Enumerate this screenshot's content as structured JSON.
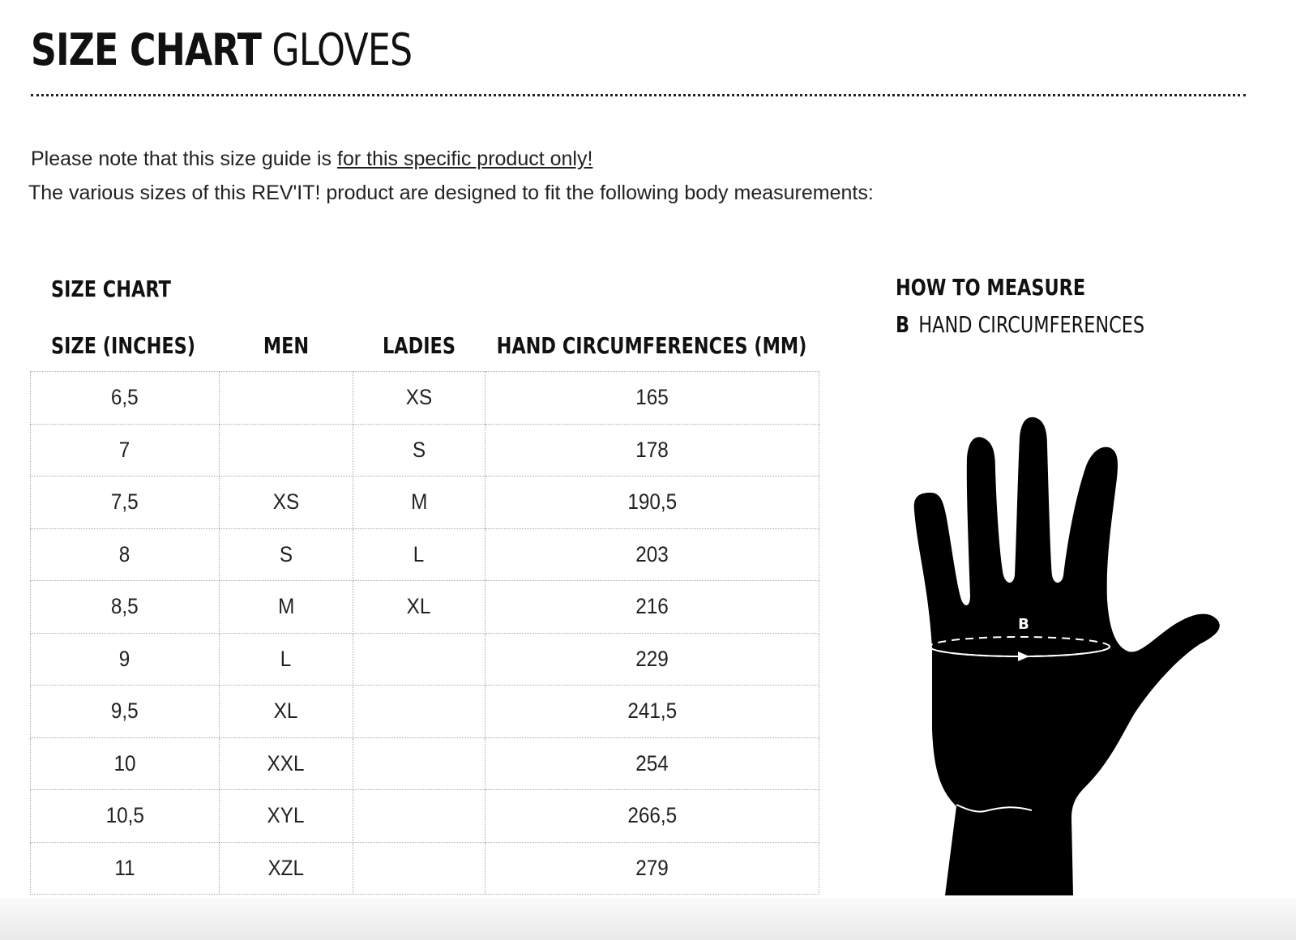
{
  "header": {
    "title_bold": "SIZE CHART",
    "title_light": "GLOVES"
  },
  "note": {
    "line1_prefix": "Please note that this size guide is ",
    "line1_link": "for this specific product only!",
    "line2": "The various sizes of this REV'IT! product are designed to fit the following body measurements:"
  },
  "size_chart": {
    "heading": "SIZE CHART",
    "columns": [
      "SIZE (INCHES)",
      "MEN",
      "LADIES",
      "HAND CIRCUMFERENCES (MM)"
    ],
    "rows": [
      [
        "6,5",
        "",
        "XS",
        "165"
      ],
      [
        "7",
        "",
        "S",
        "178"
      ],
      [
        "7,5",
        "XS",
        "M",
        "190,5"
      ],
      [
        "8",
        "S",
        "L",
        "203"
      ],
      [
        "8,5",
        "M",
        "XL",
        "216"
      ],
      [
        "9",
        "L",
        "",
        "229"
      ],
      [
        "9,5",
        "XL",
        "",
        "241,5"
      ],
      [
        "10",
        "XXL",
        "",
        "254"
      ],
      [
        "10,5",
        "XYL",
        "",
        "266,5"
      ],
      [
        "11",
        "XZL",
        "",
        "279"
      ]
    ]
  },
  "how_to_measure": {
    "heading": "HOW TO MEASURE",
    "letter": "B",
    "label": "HAND CIRCUMFERENCES",
    "diagram_label": "B"
  }
}
